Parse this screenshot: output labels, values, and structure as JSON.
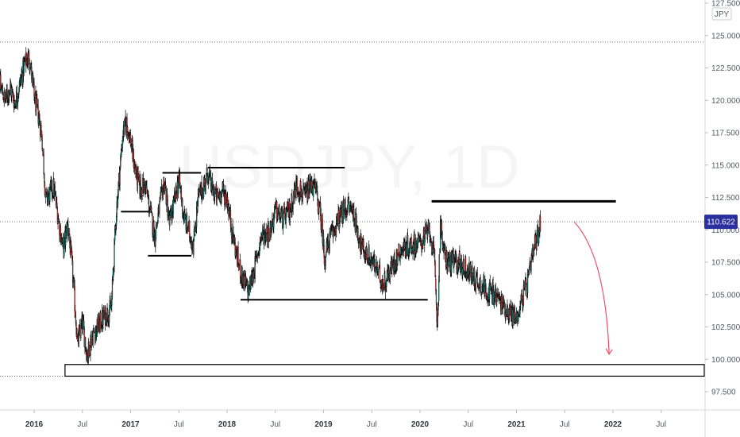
{
  "chart_data": {
    "type": "candlestick",
    "watermark": "USDJPY, 1D",
    "currency_badge": "JPY",
    "price_tag": "110.622",
    "price_tag_value": 110.622,
    "ylim": [
      96.5,
      128.0
    ],
    "y_ticks": [
      "97.500",
      "100.000",
      "102.500",
      "105.000",
      "107.500",
      "110.000",
      "112.500",
      "115.000",
      "117.500",
      "120.000",
      "122.500",
      "125.000",
      "127.500"
    ],
    "x_start": 2015.6,
    "x_end": 2022.6,
    "x_ticks": [
      {
        "t": 2016.0,
        "label": "2016",
        "year": true
      },
      {
        "t": 2016.5,
        "label": "Jul",
        "year": false
      },
      {
        "t": 2017.0,
        "label": "2017",
        "year": true
      },
      {
        "t": 2017.5,
        "label": "Jul",
        "year": false
      },
      {
        "t": 2018.0,
        "label": "2018",
        "year": true
      },
      {
        "t": 2018.5,
        "label": "Jul",
        "year": false
      },
      {
        "t": 2019.0,
        "label": "2019",
        "year": true
      },
      {
        "t": 2019.5,
        "label": "Jul",
        "year": false
      },
      {
        "t": 2020.0,
        "label": "2020",
        "year": true
      },
      {
        "t": 2020.5,
        "label": "Jul",
        "year": false
      },
      {
        "t": 2021.0,
        "label": "2021",
        "year": true
      },
      {
        "t": 2021.5,
        "label": "Jul",
        "year": false
      },
      {
        "t": 2022.0,
        "label": "2022",
        "year": true
      },
      {
        "t": 2022.5,
        "label": "Jul",
        "year": false
      }
    ],
    "dotted_levels": [
      124.5,
      110.622,
      98.7
    ],
    "support_zone": {
      "t1": 2016.32,
      "t2": 2023.0,
      "y1": 98.7,
      "y2": 99.6
    },
    "levels": [
      {
        "t1": 2016.9,
        "t2": 2017.2,
        "y": 111.4,
        "w": 2
      },
      {
        "t1": 2017.18,
        "t2": 2017.63,
        "y": 108.0,
        "w": 2
      },
      {
        "t1": 2017.33,
        "t2": 2017.73,
        "y": 114.4,
        "w": 2
      },
      {
        "t1": 2017.8,
        "t2": 2019.22,
        "y": 114.8,
        "w": 2
      },
      {
        "t1": 2018.14,
        "t2": 2020.08,
        "y": 104.6,
        "w": 2
      },
      {
        "t1": 2020.12,
        "t2": 2022.03,
        "y": 112.2,
        "w": 3
      }
    ],
    "arrow": {
      "t0": 2021.6,
      "y0": 110.6,
      "tc": 2021.92,
      "yc": 108.0,
      "t1": 2021.96,
      "y1": 100.4
    },
    "price_path": [
      [
        2015.6,
        122.3
      ],
      [
        2015.65,
        121.0
      ],
      [
        2015.7,
        120.0
      ],
      [
        2015.75,
        121.0
      ],
      [
        2015.8,
        119.8
      ],
      [
        2015.85,
        121.2
      ],
      [
        2015.9,
        122.8
      ],
      [
        2015.95,
        123.4
      ],
      [
        2016.0,
        120.3
      ],
      [
        2016.05,
        118.6
      ],
      [
        2016.08,
        117.3
      ],
      [
        2016.12,
        112.3
      ],
      [
        2016.2,
        113.3
      ],
      [
        2016.3,
        108.5
      ],
      [
        2016.35,
        110.5
      ],
      [
        2016.4,
        106.5
      ],
      [
        2016.45,
        101.2
      ],
      [
        2016.5,
        102.8
      ],
      [
        2016.55,
        100.3
      ],
      [
        2016.6,
        101.8
      ],
      [
        2016.7,
        103.0
      ],
      [
        2016.8,
        104.0
      ],
      [
        2016.85,
        111.3
      ],
      [
        2016.92,
        117.5
      ],
      [
        2016.96,
        118.3
      ],
      [
        2017.0,
        116.8
      ],
      [
        2017.05,
        114.5
      ],
      [
        2017.1,
        113.1
      ],
      [
        2017.15,
        113.5
      ],
      [
        2017.2,
        111.5
      ],
      [
        2017.25,
        109.5
      ],
      [
        2017.3,
        111.8
      ],
      [
        2017.35,
        113.8
      ],
      [
        2017.4,
        110.5
      ],
      [
        2017.45,
        112.0
      ],
      [
        2017.5,
        114.0
      ],
      [
        2017.55,
        111.0
      ],
      [
        2017.6,
        110.0
      ],
      [
        2017.65,
        108.8
      ],
      [
        2017.7,
        112.5
      ],
      [
        2017.75,
        113.2
      ],
      [
        2017.8,
        114.4
      ],
      [
        2017.85,
        113.0
      ],
      [
        2017.9,
        112.5
      ],
      [
        2017.95,
        113.0
      ],
      [
        2018.0,
        112.4
      ],
      [
        2018.05,
        110.0
      ],
      [
        2018.1,
        108.0
      ],
      [
        2018.15,
        106.5
      ],
      [
        2018.22,
        105.2
      ],
      [
        2018.3,
        107.5
      ],
      [
        2018.35,
        109.5
      ],
      [
        2018.45,
        110.0
      ],
      [
        2018.5,
        111.5
      ],
      [
        2018.58,
        110.8
      ],
      [
        2018.65,
        111.5
      ],
      [
        2018.72,
        113.5
      ],
      [
        2018.8,
        112.5
      ],
      [
        2018.88,
        113.5
      ],
      [
        2018.92,
        113.0
      ],
      [
        2018.98,
        110.5
      ],
      [
        2019.01,
        107.8
      ],
      [
        2019.05,
        109.0
      ],
      [
        2019.15,
        110.8
      ],
      [
        2019.25,
        111.8
      ],
      [
        2019.3,
        111.6
      ],
      [
        2019.35,
        110.0
      ],
      [
        2019.4,
        108.5
      ],
      [
        2019.48,
        107.8
      ],
      [
        2019.55,
        107.0
      ],
      [
        2019.62,
        105.8
      ],
      [
        2019.7,
        107.0
      ],
      [
        2019.8,
        108.5
      ],
      [
        2019.9,
        108.8
      ],
      [
        2020.0,
        109.0
      ],
      [
        2020.05,
        109.5
      ],
      [
        2020.1,
        110.0
      ],
      [
        2020.15,
        107.5
      ],
      [
        2020.18,
        102.5
      ],
      [
        2020.21,
        110.5
      ],
      [
        2020.25,
        108.0
      ],
      [
        2020.3,
        107.5
      ],
      [
        2020.4,
        107.5
      ],
      [
        2020.5,
        106.8
      ],
      [
        2020.6,
        106.0
      ],
      [
        2020.7,
        105.3
      ],
      [
        2020.8,
        104.8
      ],
      [
        2020.9,
        103.8
      ],
      [
        2021.0,
        103.2
      ],
      [
        2021.05,
        104.5
      ],
      [
        2021.12,
        106.0
      ],
      [
        2021.18,
        108.5
      ],
      [
        2021.22,
        109.6
      ],
      [
        2021.25,
        110.5
      ]
    ]
  }
}
